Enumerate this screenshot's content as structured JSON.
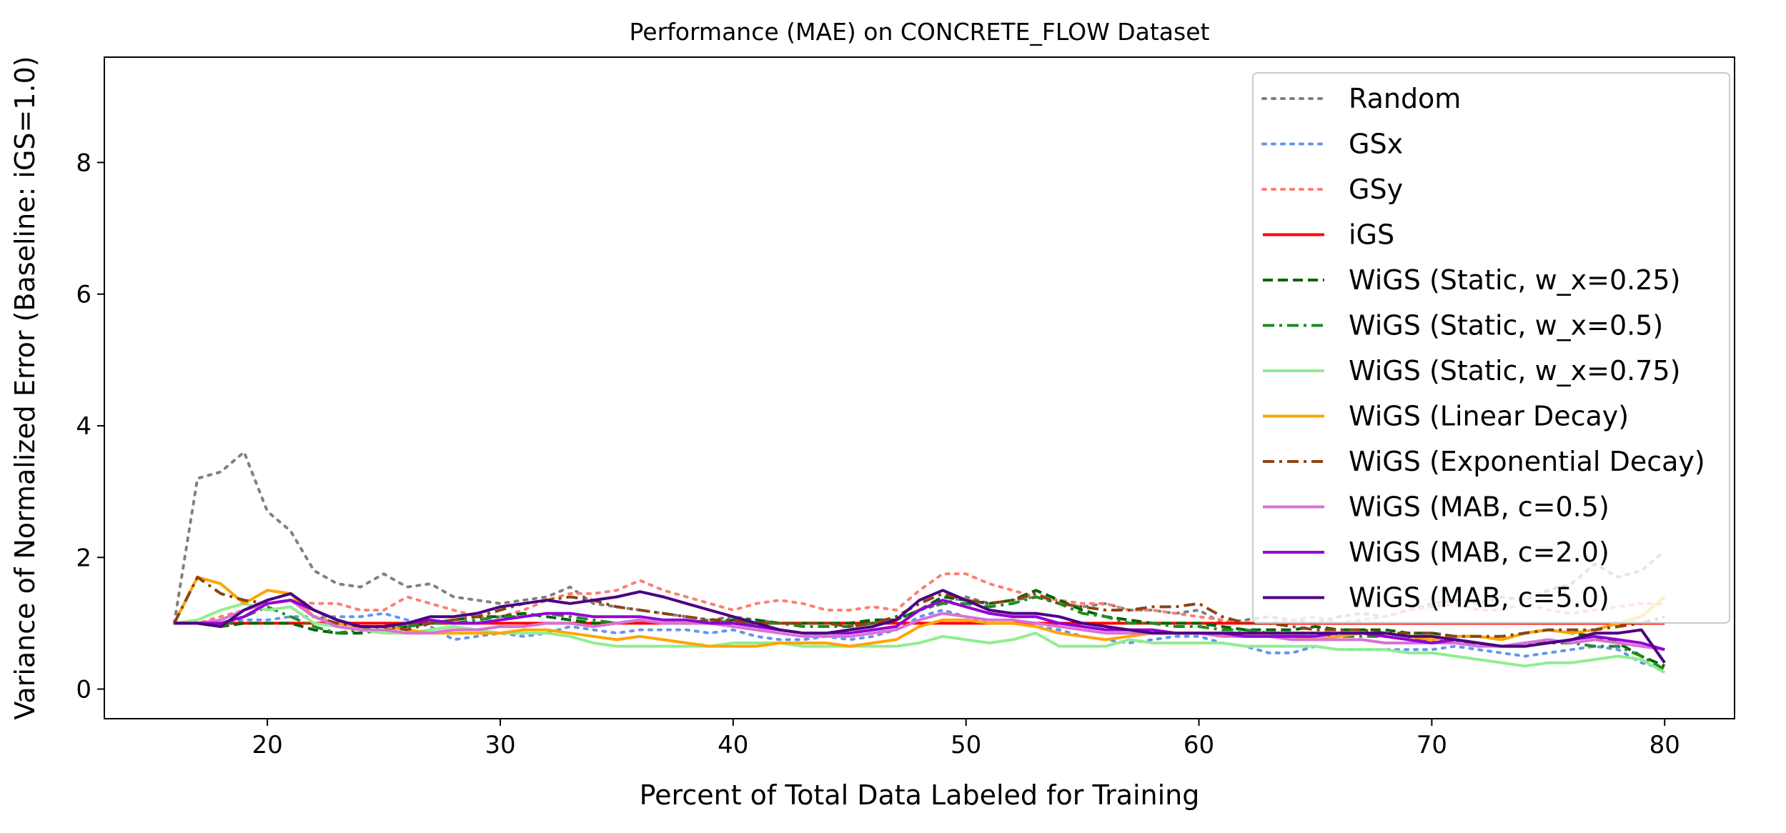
{
  "chart_data": {
    "type": "line",
    "title": "Performance (MAE) on CONCRETE_FLOW Dataset",
    "xlabel": "Percent of Total Data Labeled for Training",
    "ylabel": "Variance of Normalized Error (Baseline: iGS=1.0)",
    "xlim": [
      13,
      83
    ],
    "ylim": [
      -0.45,
      9.6
    ],
    "xticks": [
      20,
      30,
      40,
      50,
      60,
      70,
      80
    ],
    "yticks": [
      0,
      2,
      4,
      6,
      8
    ],
    "grid": false,
    "legend_position": "top-right",
    "x": [
      16,
      17,
      18,
      19,
      20,
      21,
      22,
      23,
      24,
      25,
      26,
      27,
      28,
      29,
      30,
      31,
      32,
      33,
      34,
      35,
      36,
      37,
      38,
      39,
      40,
      41,
      42,
      43,
      44,
      45,
      46,
      47,
      48,
      49,
      50,
      51,
      52,
      53,
      54,
      55,
      56,
      57,
      58,
      59,
      60,
      61,
      62,
      63,
      64,
      65,
      66,
      67,
      68,
      69,
      70,
      71,
      72,
      73,
      74,
      75,
      76,
      77,
      78,
      79,
      80
    ],
    "series": [
      {
        "name": "Random",
        "color": "#808080",
        "dash": "dot",
        "values": [
          1.0,
          3.2,
          3.3,
          3.6,
          2.7,
          2.4,
          1.8,
          1.6,
          1.55,
          1.75,
          1.55,
          1.6,
          1.4,
          1.35,
          1.3,
          1.35,
          1.4,
          1.55,
          1.3,
          1.25,
          1.2,
          1.15,
          1.1,
          1.05,
          1.1,
          1.05,
          1.0,
          1.0,
          1.0,
          1.0,
          1.0,
          1.05,
          1.2,
          1.3,
          1.4,
          1.3,
          1.35,
          1.4,
          1.3,
          1.25,
          1.3,
          1.2,
          1.2,
          1.15,
          1.2,
          1.0,
          1.05,
          1.1,
          1.05,
          1.0,
          1.1,
          1.15,
          1.1,
          1.2,
          1.3,
          1.35,
          1.3,
          1.4,
          1.35,
          1.5,
          1.6,
          1.9,
          1.7,
          1.8,
          2.1
        ]
      },
      {
        "name": "GSx",
        "color": "#6495ED",
        "dash": "dot",
        "values": [
          1.0,
          1.0,
          1.0,
          1.05,
          1.05,
          1.1,
          1.1,
          1.1,
          1.1,
          1.15,
          1.05,
          0.95,
          0.75,
          0.8,
          0.85,
          0.8,
          0.85,
          0.95,
          0.9,
          0.85,
          0.9,
          0.9,
          0.9,
          0.85,
          0.9,
          0.8,
          0.75,
          0.75,
          0.8,
          0.75,
          0.8,
          0.9,
          1.1,
          1.2,
          1.1,
          1.0,
          1.0,
          0.95,
          0.9,
          0.8,
          0.75,
          0.7,
          0.75,
          0.8,
          0.8,
          0.7,
          0.65,
          0.55,
          0.55,
          0.65,
          0.6,
          0.6,
          0.6,
          0.6,
          0.6,
          0.65,
          0.6,
          0.55,
          0.5,
          0.55,
          0.6,
          0.65,
          0.6,
          0.4,
          0.3
        ]
      },
      {
        "name": "GSy",
        "color": "#FA8072",
        "dash": "dot",
        "values": [
          1.0,
          1.0,
          1.1,
          1.2,
          1.3,
          1.35,
          1.3,
          1.3,
          1.2,
          1.2,
          1.4,
          1.3,
          1.2,
          1.1,
          1.1,
          1.2,
          1.35,
          1.45,
          1.45,
          1.5,
          1.65,
          1.5,
          1.4,
          1.3,
          1.2,
          1.3,
          1.35,
          1.3,
          1.2,
          1.2,
          1.25,
          1.2,
          1.5,
          1.75,
          1.75,
          1.6,
          1.5,
          1.4,
          1.35,
          1.3,
          1.3,
          1.2,
          1.2,
          1.15,
          1.1,
          1.05,
          1.0,
          1.0,
          1.05,
          1.1,
          1.0,
          1.05,
          1.1,
          1.2,
          1.25,
          1.3,
          1.2,
          1.2,
          1.3,
          1.2,
          1.15,
          1.2,
          1.25,
          1.3,
          1.3
        ]
      },
      {
        "name": "iGS",
        "color": "#FF0000",
        "dash": "solid",
        "values": [
          1.0,
          1.0,
          1.0,
          1.0,
          1.0,
          1.0,
          1.0,
          1.0,
          1.0,
          1.0,
          1.0,
          1.0,
          1.0,
          1.0,
          1.0,
          1.0,
          1.0,
          1.0,
          1.0,
          1.0,
          1.0,
          1.0,
          1.0,
          1.0,
          1.0,
          1.0,
          1.0,
          1.0,
          1.0,
          1.0,
          1.0,
          1.0,
          1.0,
          1.0,
          1.0,
          1.0,
          1.0,
          1.0,
          1.0,
          1.0,
          1.0,
          1.0,
          1.0,
          1.0,
          1.0,
          1.0,
          1.0,
          1.0,
          1.0,
          1.0,
          1.0,
          1.0,
          1.0,
          1.0,
          1.0,
          1.0,
          1.0,
          1.0,
          1.0,
          1.0,
          1.0,
          1.0,
          1.0,
          1.0,
          1.0
        ]
      },
      {
        "name": "WiGS (Static, w_x=0.25)",
        "color": "#006400",
        "dash": "dash",
        "values": [
          1.0,
          1.0,
          0.95,
          1.0,
          1.0,
          1.0,
          0.9,
          0.85,
          0.85,
          0.9,
          0.95,
          1.0,
          1.05,
          1.1,
          1.1,
          1.15,
          1.1,
          1.05,
          1.0,
          1.0,
          1.05,
          1.0,
          1.0,
          1.0,
          1.05,
          1.05,
          1.0,
          1.0,
          1.0,
          1.0,
          1.05,
          1.05,
          1.2,
          1.4,
          1.35,
          1.3,
          1.35,
          1.5,
          1.35,
          1.2,
          1.1,
          1.05,
          1.0,
          1.0,
          1.0,
          0.95,
          0.9,
          0.9,
          0.9,
          0.95,
          0.9,
          0.9,
          0.9,
          0.85,
          0.85,
          0.8,
          0.8,
          0.75,
          0.85,
          0.9,
          0.85,
          0.8,
          0.7,
          0.5,
          0.35
        ]
      },
      {
        "name": "WiGS (Static, w_x=0.5)",
        "color": "#228B22",
        "dash": "dashdot",
        "values": [
          1.0,
          1.0,
          0.95,
          1.1,
          1.25,
          1.1,
          0.95,
          0.85,
          0.9,
          0.95,
          0.95,
          1.0,
          1.0,
          1.05,
          1.1,
          1.1,
          1.15,
          1.1,
          1.05,
          1.0,
          1.05,
          1.0,
          1.0,
          1.05,
          1.0,
          1.0,
          1.0,
          0.95,
          0.95,
          0.95,
          1.0,
          1.05,
          1.2,
          1.3,
          1.3,
          1.25,
          1.3,
          1.4,
          1.3,
          1.15,
          1.1,
          1.0,
          1.0,
          0.95,
          0.95,
          0.9,
          0.9,
          0.85,
          0.85,
          0.85,
          0.8,
          0.8,
          0.8,
          0.75,
          0.75,
          0.7,
          0.7,
          0.65,
          0.7,
          0.7,
          0.7,
          0.65,
          0.65,
          0.5,
          0.3
        ]
      },
      {
        "name": "WiGS (Static, w_x=0.75)",
        "color": "#90EE90",
        "dash": "solid",
        "values": [
          1.0,
          1.05,
          1.2,
          1.3,
          1.2,
          1.25,
          1.0,
          0.95,
          0.9,
          0.85,
          0.85,
          0.9,
          0.95,
          0.9,
          0.85,
          0.85,
          0.85,
          0.8,
          0.7,
          0.65,
          0.65,
          0.65,
          0.65,
          0.65,
          0.7,
          0.7,
          0.7,
          0.65,
          0.65,
          0.65,
          0.65,
          0.65,
          0.7,
          0.8,
          0.75,
          0.7,
          0.75,
          0.85,
          0.65,
          0.65,
          0.65,
          0.75,
          0.7,
          0.7,
          0.7,
          0.7,
          0.65,
          0.65,
          0.65,
          0.65,
          0.6,
          0.6,
          0.6,
          0.55,
          0.55,
          0.5,
          0.45,
          0.4,
          0.35,
          0.4,
          0.4,
          0.45,
          0.5,
          0.45,
          0.25
        ]
      },
      {
        "name": "WiGS (Linear Decay)",
        "color": "#FFA500",
        "dash": "solid",
        "values": [
          1.0,
          1.7,
          1.6,
          1.3,
          1.5,
          1.45,
          1.1,
          1.0,
          0.95,
          0.95,
          0.9,
          0.85,
          0.85,
          0.85,
          0.85,
          0.9,
          0.9,
          0.85,
          0.8,
          0.75,
          0.8,
          0.75,
          0.7,
          0.65,
          0.65,
          0.65,
          0.7,
          0.7,
          0.7,
          0.65,
          0.7,
          0.75,
          0.95,
          1.05,
          1.05,
          1.0,
          1.0,
          0.95,
          0.85,
          0.8,
          0.75,
          0.8,
          0.85,
          0.85,
          0.85,
          0.8,
          0.8,
          0.8,
          0.8,
          0.75,
          0.8,
          0.85,
          0.85,
          0.8,
          0.75,
          0.8,
          0.8,
          0.75,
          0.85,
          0.9,
          0.85,
          0.9,
          1.0,
          1.1,
          1.4
        ]
      },
      {
        "name": "WiGS (Exponential Decay)",
        "color": "#8B4513",
        "dash": "dashdot",
        "values": [
          1.0,
          1.7,
          1.45,
          1.35,
          1.3,
          1.35,
          1.1,
          1.0,
          0.95,
          0.95,
          0.9,
          1.0,
          1.05,
          1.1,
          1.2,
          1.3,
          1.35,
          1.4,
          1.35,
          1.25,
          1.2,
          1.15,
          1.1,
          1.05,
          1.05,
          1.0,
          1.0,
          1.0,
          1.0,
          0.95,
          1.0,
          1.1,
          1.3,
          1.45,
          1.35,
          1.3,
          1.35,
          1.45,
          1.3,
          1.25,
          1.2,
          1.2,
          1.25,
          1.25,
          1.3,
          1.1,
          1.0,
          1.0,
          0.95,
          0.9,
          0.9,
          0.9,
          0.85,
          0.85,
          0.85,
          0.8,
          0.8,
          0.8,
          0.85,
          0.9,
          0.9,
          0.9,
          0.95,
          1.0,
          1.1
        ]
      },
      {
        "name": "WiGS (MAB, c=0.5)",
        "color": "#DA70D6",
        "dash": "solid",
        "values": [
          1.0,
          1.0,
          1.05,
          1.2,
          1.3,
          1.35,
          1.1,
          0.95,
          0.9,
          0.9,
          0.85,
          0.85,
          0.9,
          0.9,
          0.95,
          0.95,
          1.0,
          1.0,
          0.95,
          1.0,
          1.05,
          1.0,
          1.0,
          1.0,
          0.95,
          0.9,
          0.85,
          0.8,
          0.8,
          0.8,
          0.85,
          0.9,
          1.05,
          1.15,
          1.1,
          1.05,
          1.05,
          1.0,
          0.95,
          0.9,
          0.85,
          0.85,
          0.85,
          0.85,
          0.85,
          0.8,
          0.8,
          0.8,
          0.75,
          0.75,
          0.75,
          0.75,
          0.7,
          0.7,
          0.7,
          0.7,
          0.65,
          0.65,
          0.7,
          0.75,
          0.7,
          0.75,
          0.7,
          0.65,
          0.6
        ]
      },
      {
        "name": "WiGS (MAB, c=2.0)",
        "color": "#9400D3",
        "dash": "solid",
        "values": [
          1.0,
          1.0,
          1.0,
          1.1,
          1.3,
          1.35,
          1.2,
          1.05,
          0.95,
          0.95,
          1.0,
          1.05,
          1.0,
          1.0,
          1.05,
          1.1,
          1.15,
          1.15,
          1.1,
          1.1,
          1.1,
          1.05,
          1.05,
          1.0,
          1.0,
          0.95,
          0.9,
          0.85,
          0.85,
          0.85,
          0.9,
          0.95,
          1.2,
          1.35,
          1.25,
          1.15,
          1.1,
          1.1,
          1.0,
          0.95,
          0.9,
          0.9,
          0.9,
          0.85,
          0.85,
          0.85,
          0.8,
          0.8,
          0.8,
          0.8,
          0.85,
          0.85,
          0.8,
          0.75,
          0.7,
          0.75,
          0.7,
          0.65,
          0.65,
          0.7,
          0.75,
          0.8,
          0.75,
          0.7,
          0.6
        ]
      },
      {
        "name": "WiGS (MAB, c=5.0)",
        "color": "#4B0082",
        "dash": "solid",
        "values": [
          1.0,
          1.0,
          0.95,
          1.2,
          1.35,
          1.45,
          1.2,
          1.05,
          0.95,
          0.95,
          1.0,
          1.1,
          1.1,
          1.15,
          1.25,
          1.3,
          1.35,
          1.3,
          1.35,
          1.4,
          1.48,
          1.4,
          1.3,
          1.2,
          1.1,
          1.0,
          0.9,
          0.85,
          0.85,
          0.9,
          0.95,
          1.05,
          1.35,
          1.5,
          1.35,
          1.2,
          1.15,
          1.15,
          1.1,
          1.0,
          0.95,
          0.9,
          0.85,
          0.85,
          0.85,
          0.85,
          0.85,
          0.85,
          0.85,
          0.85,
          0.85,
          0.85,
          0.85,
          0.8,
          0.8,
          0.75,
          0.7,
          0.65,
          0.65,
          0.7,
          0.75,
          0.85,
          0.85,
          0.9,
          0.4
        ]
      }
    ]
  }
}
